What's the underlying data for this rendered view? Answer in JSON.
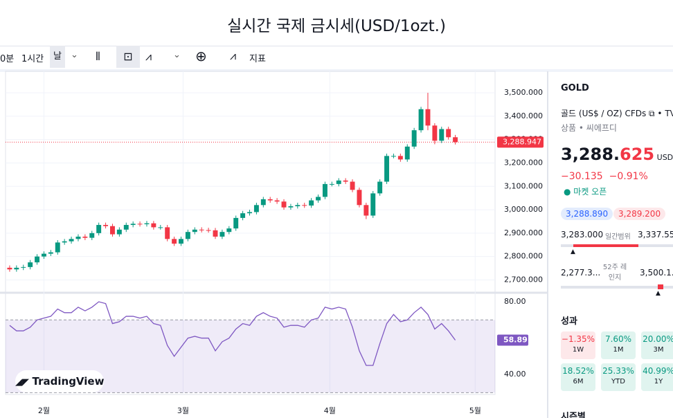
{
  "page": {
    "title": "실시간 국제 금시세(USD/1ozt.)",
    "toolbar": {
      "interval_a": "0분",
      "interval_b": "1시간",
      "interval_c": "날",
      "indicators": "지표"
    },
    "logo": "TradingView",
    "panel": {
      "symbol": "GOLD",
      "description": "골드 (US$ / OZ) CFDs",
      "exchange": "TVC",
      "category": "상품 • 씨에프디",
      "price_main": "3,288.",
      "price_tail": "625",
      "currency": "USD",
      "change": "−30.135",
      "change_pct": "−0.91%",
      "market_status": "● 마켓 오픈",
      "bid": "3,288.890",
      "ask": "3,289.200",
      "day_low": "3,283.000",
      "day_range_label": "일간범위",
      "day_high": "3,337.55",
      "year_low": "2,277.3...",
      "year_range_label": "52주 레인지",
      "year_high": "3,500.1...",
      "performance_title": "성과",
      "performance": [
        {
          "value": "−1.35%",
          "period": "1W"
        },
        {
          "value": "7.60%",
          "period": "1M"
        },
        {
          "value": "20.00%",
          "period": "3M"
        },
        {
          "value": "18.52%",
          "period": "6M"
        },
        {
          "value": "25.33%",
          "period": "YTD"
        },
        {
          "value": "40.99%",
          "period": "1Y"
        }
      ],
      "seasonal_title": "시즌별"
    }
  },
  "chart_data": {
    "type": "candlestick",
    "up_color": "#089981",
    "down_color": "#f23645",
    "xlim": [
      -0.6,
      70.8
    ],
    "xticks": [
      {
        "value": 5,
        "label": "2월"
      },
      {
        "value": 25.3,
        "label": "3월"
      },
      {
        "value": 46.7,
        "label": "4월"
      },
      {
        "value": 67.9,
        "label": "5월"
      }
    ],
    "ylim": [
      2654,
      3592
    ],
    "yticks": [
      {
        "value": 2700,
        "label": "2,700.000"
      },
      {
        "value": 2800,
        "label": "2,800.000"
      },
      {
        "value": 2900,
        "label": "2,900.000"
      },
      {
        "value": 3000,
        "label": "3,000.000"
      },
      {
        "value": 3100,
        "label": "3,100.000"
      },
      {
        "value": 3200,
        "label": "3,200.000"
      },
      {
        "value": 3300,
        "label": "3,300.000"
      },
      {
        "value": 3400,
        "label": "3,400.000"
      },
      {
        "value": 3500,
        "label": "3,500.000"
      }
    ],
    "grid": true,
    "last_price": 3288.947,
    "last_price_label": "3,288.947",
    "open": [
      2752,
      2745,
      2752,
      2755,
      2775,
      2800,
      2812,
      2818,
      2860,
      2865,
      2875,
      2885,
      2880,
      2900,
      2935,
      2930,
      2895,
      2915,
      2935,
      2940,
      2938,
      2942,
      2925,
      2925,
      2875,
      2855,
      2875,
      2905,
      2915,
      2913,
      2912,
      2885,
      2905,
      2920,
      2965,
      2985,
      2990,
      3020,
      3045,
      3040,
      3035,
      3010,
      3015,
      3020,
      3018,
      3040,
      3055,
      3110,
      3110,
      3125,
      3120,
      3085,
      3020,
      2975,
      3070,
      3120,
      3230,
      3230,
      3215,
      3270,
      3340,
      3430,
      3360,
      3295,
      3345,
      3310
    ],
    "high": [
      2762,
      2762,
      2765,
      2785,
      2810,
      2822,
      2828,
      2870,
      2875,
      2885,
      2895,
      2895,
      2910,
      2945,
      2945,
      2940,
      2925,
      2945,
      2950,
      2950,
      2952,
      2952,
      2935,
      2935,
      2885,
      2885,
      2915,
      2925,
      2925,
      2923,
      2922,
      2915,
      2930,
      2975,
      2995,
      3000,
      3030,
      3055,
      3055,
      3050,
      3045,
      3025,
      3030,
      3030,
      3050,
      3065,
      3120,
      3120,
      3135,
      3135,
      3130,
      3095,
      3030,
      3080,
      3130,
      3240,
      3240,
      3240,
      3280,
      3350,
      3440,
      3500,
      3370,
      3355,
      3355,
      3320
    ],
    "low": [
      2735,
      2735,
      2742,
      2745,
      2765,
      2790,
      2802,
      2808,
      2850,
      2855,
      2865,
      2870,
      2870,
      2890,
      2920,
      2885,
      2885,
      2905,
      2925,
      2928,
      2928,
      2915,
      2915,
      2865,
      2845,
      2845,
      2865,
      2895,
      2903,
      2902,
      2875,
      2875,
      2895,
      2910,
      2955,
      2975,
      2980,
      3010,
      3030,
      3025,
      3000,
      3000,
      3005,
      3008,
      3008,
      3030,
      3045,
      3100,
      3100,
      3110,
      3075,
      3010,
      2960,
      2965,
      3060,
      3110,
      3220,
      3205,
      3205,
      3260,
      3330,
      3340,
      3280,
      3285,
      3300,
      3279
    ],
    "close": [
      2745,
      2752,
      2755,
      2775,
      2800,
      2812,
      2818,
      2860,
      2865,
      2875,
      2885,
      2880,
      2900,
      2935,
      2930,
      2895,
      2915,
      2935,
      2940,
      2938,
      2942,
      2925,
      2925,
      2875,
      2855,
      2875,
      2905,
      2915,
      2913,
      2912,
      2885,
      2905,
      2920,
      2965,
      2985,
      2990,
      3020,
      3045,
      3040,
      3035,
      3010,
      3015,
      3020,
      3018,
      3040,
      3055,
      3110,
      3110,
      3125,
      3120,
      3085,
      3020,
      2975,
      3070,
      3120,
      3230,
      3230,
      3215,
      3270,
      3340,
      3430,
      3360,
      3295,
      3345,
      3310,
      3289
    ],
    "rsi": {
      "color": "#7e57c2",
      "ylim": [
        29,
        84.2
      ],
      "band": [
        30,
        70
      ],
      "yticks": [
        {
          "value": 40,
          "label": "40.00"
        },
        {
          "value": 80,
          "label": "80.00"
        }
      ],
      "values": [
        67,
        64,
        64,
        66,
        70,
        71,
        72,
        76,
        74,
        74,
        77,
        75,
        77,
        80,
        79,
        68,
        69,
        72,
        72,
        71,
        72,
        68,
        67,
        56,
        50,
        55,
        60,
        61,
        60,
        60,
        53,
        58,
        60,
        65,
        68,
        67,
        72,
        74,
        72,
        71,
        66,
        67,
        67,
        66,
        70,
        71,
        77,
        76,
        77,
        76,
        66,
        53,
        45,
        45,
        57,
        68,
        73,
        69,
        70,
        74,
        77,
        73,
        65,
        68,
        64,
        58.89
      ]
    }
  }
}
